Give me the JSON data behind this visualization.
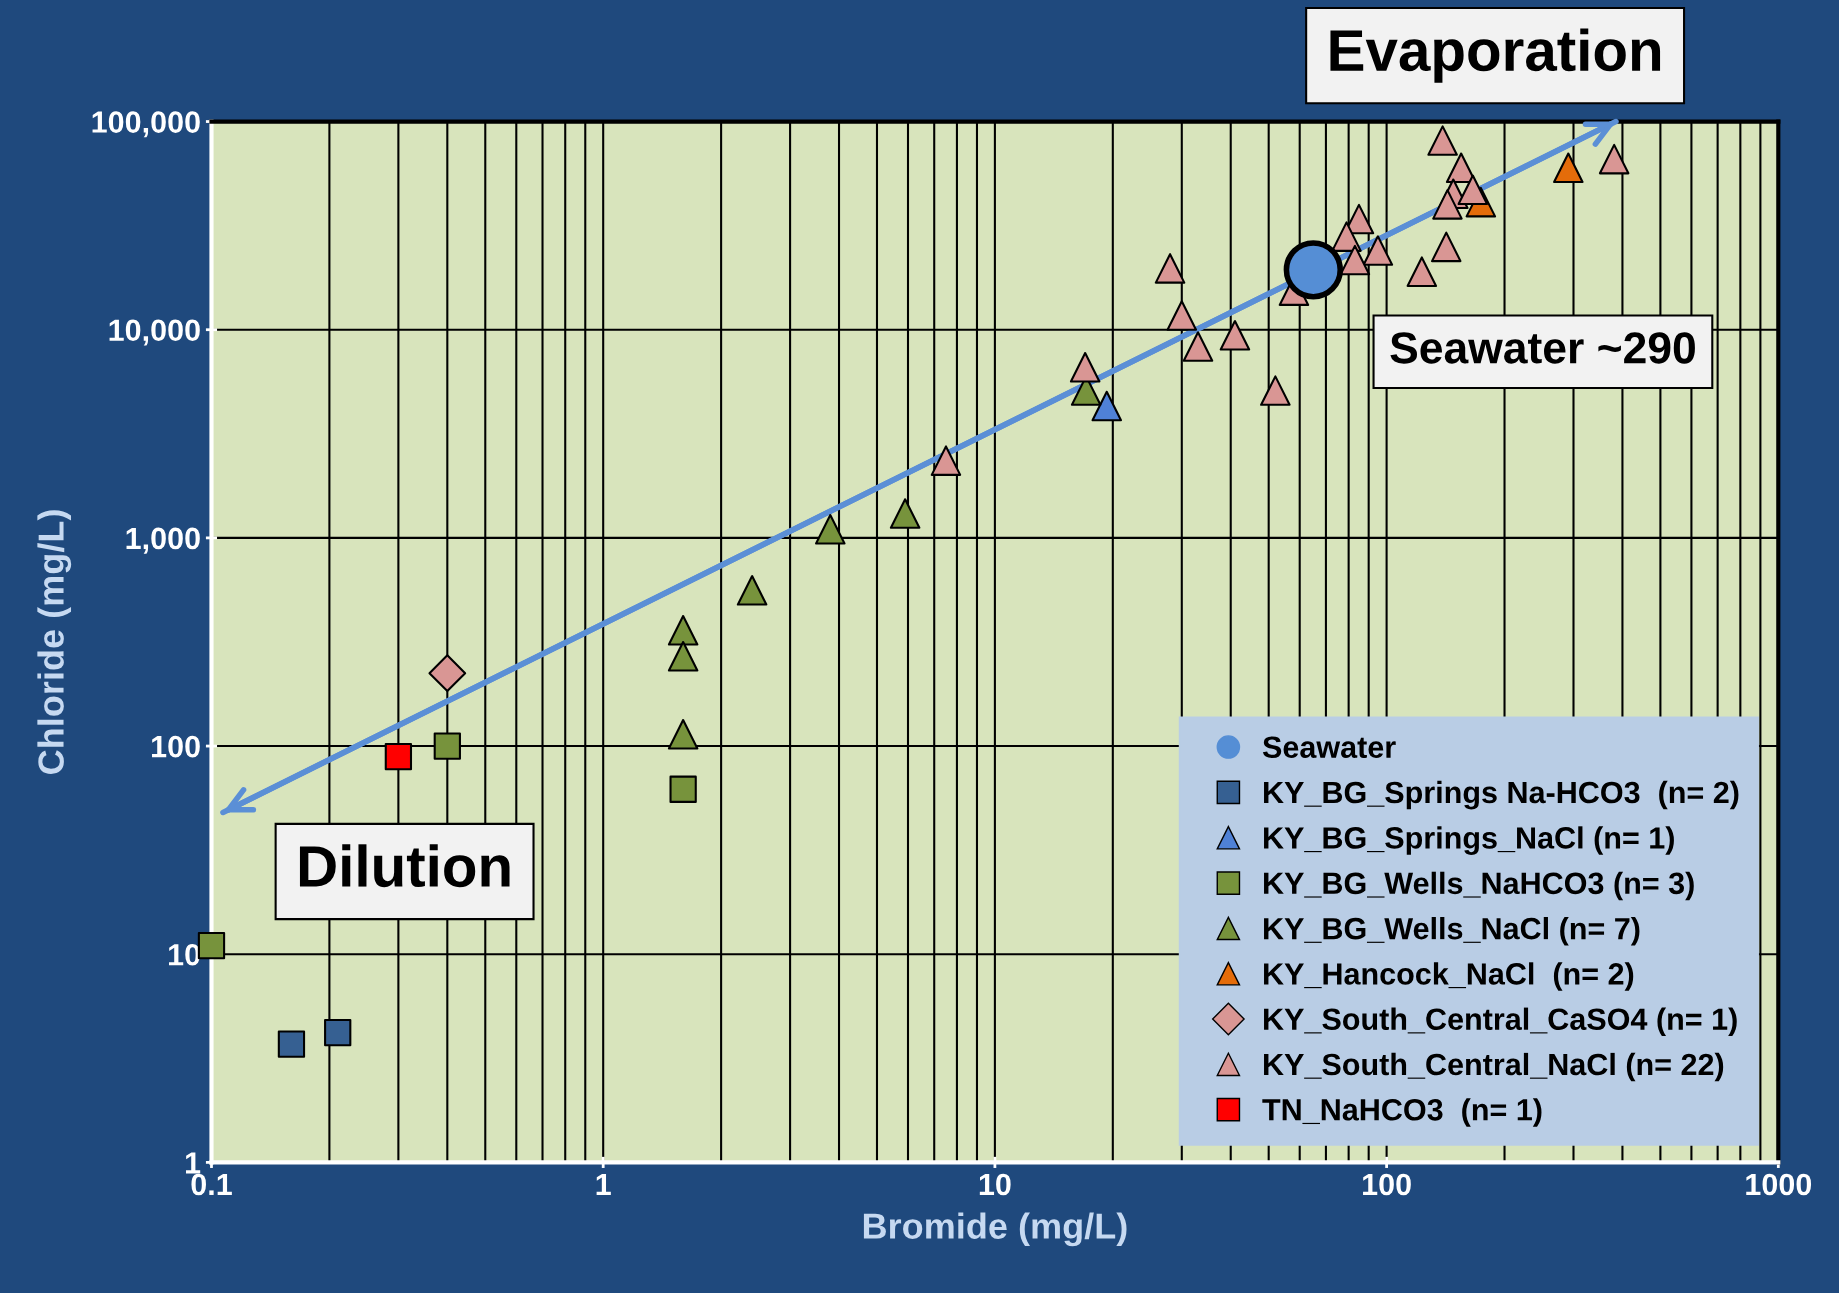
{
  "chart_data": {
    "type": "scatter",
    "xlabel": "Bromide (mg/L)",
    "ylabel": "Chloride (mg/L)",
    "log": "xy",
    "xlim": [
      0.1,
      1000
    ],
    "ylim": [
      1,
      100000
    ],
    "xticks": [
      0.1,
      {
        "value": 0.2,
        "label": null
      },
      {
        "value": 0.3,
        "label": null
      },
      {
        "value": 0.4,
        "label": null
      },
      {
        "value": 0.5,
        "label": null
      },
      {
        "value": 0.6,
        "label": null
      },
      {
        "value": 0.7,
        "label": null
      },
      {
        "value": 0.8,
        "label": null
      },
      {
        "value": 0.9,
        "label": null
      },
      1,
      {
        "value": 2,
        "label": null
      },
      {
        "value": 3,
        "label": null
      },
      {
        "value": 4,
        "label": null
      },
      {
        "value": 5,
        "label": null
      },
      {
        "value": 6,
        "label": null
      },
      {
        "value": 7,
        "label": null
      },
      {
        "value": 8,
        "label": null
      },
      {
        "value": 9,
        "label": null
      },
      10,
      {
        "value": 20,
        "label": null
      },
      {
        "value": 30,
        "label": null
      },
      {
        "value": 40,
        "label": null
      },
      {
        "value": 50,
        "label": null
      },
      {
        "value": 60,
        "label": null
      },
      {
        "value": 70,
        "label": null
      },
      {
        "value": 80,
        "label": null
      },
      {
        "value": 90,
        "label": null
      },
      100,
      {
        "value": 200,
        "label": null
      },
      {
        "value": 300,
        "label": null
      },
      {
        "value": 400,
        "label": null
      },
      {
        "value": 500,
        "label": null
      },
      {
        "value": 600,
        "label": null
      },
      {
        "value": 700,
        "label": null
      },
      {
        "value": 800,
        "label": null
      },
      {
        "value": 900,
        "label": null
      },
      1000
    ],
    "yticks": [
      1,
      10,
      100,
      {
        "value": 1000,
        "label": "1,000"
      },
      {
        "value": 10000,
        "label": "10,000"
      },
      {
        "value": 100000,
        "label": "100,000"
      }
    ],
    "grid": true,
    "legend": "bottom right",
    "annotations": [
      "Evaporation",
      "Seawater ~290",
      "Dilution"
    ],
    "series": [
      {
        "type": "line",
        "color": "#5b8fd6",
        "marker": "none",
        "line_style": "solid",
        "x": [
          0.107,
          385
        ],
        "values": [
          48,
          100000
        ]
      },
      {
        "name": "Seawater",
        "color": "#558ed5",
        "marker": "circle",
        "x": [
          65
        ],
        "values": [
          19400
        ]
      },
      {
        "name": "KY_BG_Springs Na-HCO3  (n= 2)",
        "color": "#366092",
        "marker": "square",
        "x": [
          0.16,
          0.21
        ],
        "values": [
          3.7,
          4.2
        ]
      },
      {
        "name": "KY_BG_Springs_NaCl (n= 1)",
        "color": "#4f81d6",
        "marker": "triangle",
        "x": [
          19.3
        ],
        "values": [
          4300
        ]
      },
      {
        "name": "KY_BG_Wells_NaHCO3 (n= 3)",
        "color": "#77933c",
        "marker": "square",
        "x": [
          0.1,
          0.4,
          1.6
        ],
        "values": [
          11,
          100,
          62
        ]
      },
      {
        "name": "KY_BG_Wells_NaCl (n= 7)",
        "color": "#77933c",
        "marker": "triangle",
        "x": [
          17.1,
          3.8,
          5.9,
          2.4,
          1.6,
          1.6,
          1.6
        ],
        "values": [
          5100,
          1100,
          1310,
          560,
          360,
          270,
          114
        ]
      },
      {
        "name": "KY_Hancock_NaCl  (n= 2)",
        "color": "#e46c0a",
        "marker": "triangle",
        "x": [
          291,
          174
        ],
        "values": [
          60000,
          41000
        ]
      },
      {
        "name": "KY_South_Central_CaSO4 (n= 1)",
        "color": "#d99694",
        "marker": "diamond",
        "x": [
          0.4
        ],
        "values": [
          224
        ]
      },
      {
        "name": "KY_South_Central_NaCl (n= 22)",
        "color": "#d99694",
        "marker": "triangle",
        "x": [
          139,
          155,
          148,
          166,
          143,
          381,
          85,
          79,
          95,
          83,
          142,
          123,
          58,
          28,
          30,
          33,
          41,
          52,
          17,
          7.5,
          null
        ],
        "values": [
          81000,
          60000,
          45000,
          47000,
          40000,
          66000,
          34000,
          28000,
          24000,
          21600,
          25000,
          19000,
          15400,
          19700,
          11700,
          8300,
          9400,
          5100,
          6600,
          2350,
          null
        ]
      },
      {
        "name": "TN_NaHCO3  (n= 1)",
        "color": "#ff0000",
        "marker": "square",
        "x": [
          0.3
        ],
        "values": [
          89
        ]
      }
    ]
  }
}
